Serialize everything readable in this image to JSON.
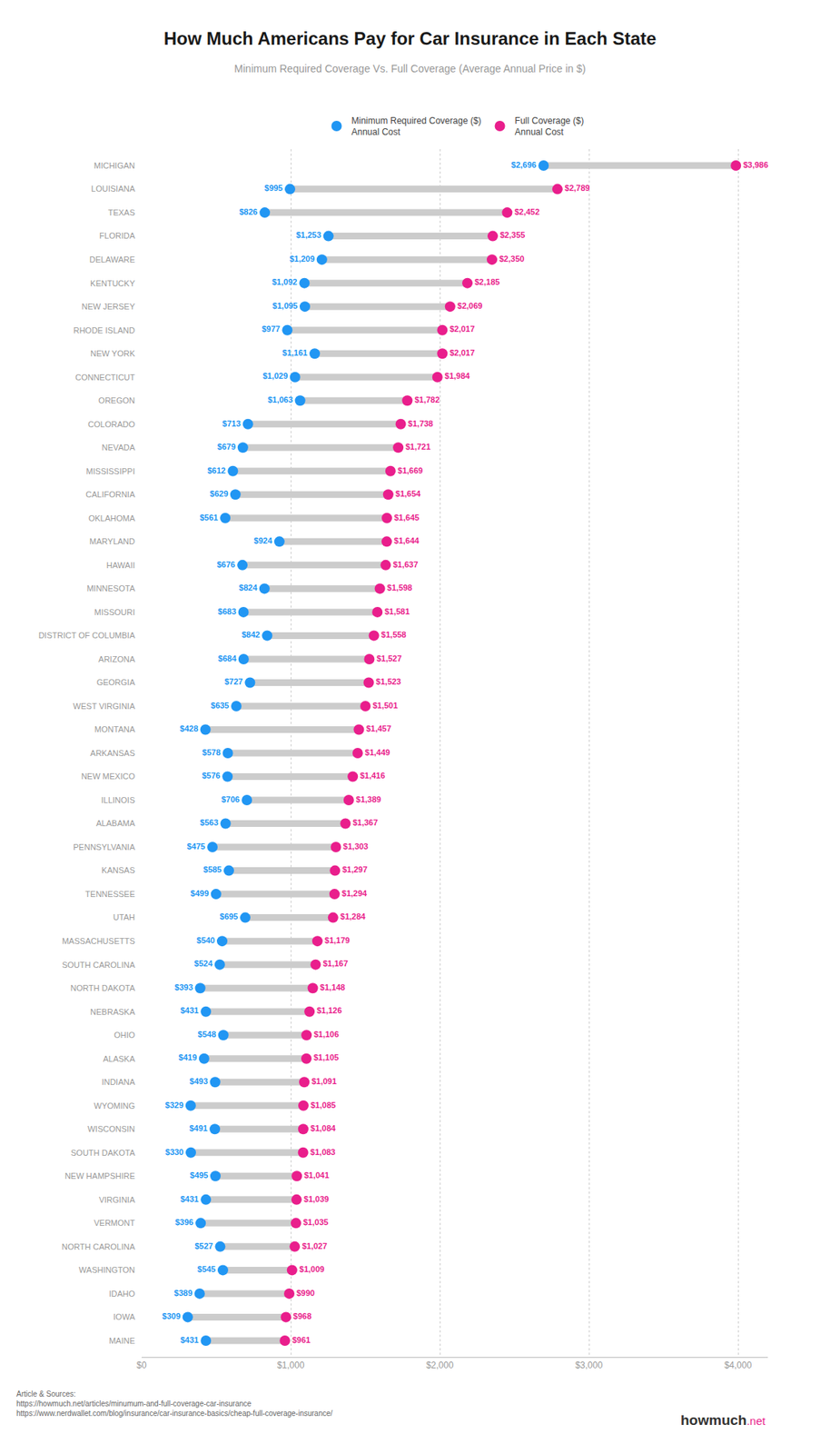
{
  "chart_data": {
    "type": "dumbbell",
    "title": "How Much Americans Pay for Car Insurance in Each State",
    "subtitle": "Minimum Required Coverage Vs. Full Coverage (Average Annual Price in $)",
    "orientation": "horizontal",
    "categories": [
      "MICHIGAN",
      "LOUISIANA",
      "TEXAS",
      "FLORIDA",
      "DELAWARE",
      "KENTUCKY",
      "NEW JERSEY",
      "RHODE ISLAND",
      "NEW YORK",
      "CONNECTICUT",
      "OREGON",
      "COLORADO",
      "NEVADA",
      "MISSISSIPPI",
      "CALIFORNIA",
      "OKLAHOMA",
      "MARYLAND",
      "HAWAII",
      "MINNESOTA",
      "MISSOURI",
      "DISTRICT OF COLUMBIA",
      "ARIZONA",
      "GEORGIA",
      "WEST VIRGINIA",
      "MONTANA",
      "ARKANSAS",
      "NEW MEXICO",
      "ILLINOIS",
      "ALABAMA",
      "PENNSYLVANIA",
      "KANSAS",
      "TENNESSEE",
      "UTAH",
      "MASSACHUSETTS",
      "SOUTH CAROLINA",
      "NORTH DAKOTA",
      "NEBRASKA",
      "OHIO",
      "ALASKA",
      "INDIANA",
      "WYOMING",
      "WISCONSIN",
      "SOUTH DAKOTA",
      "NEW HAMPSHIRE",
      "VIRGINIA",
      "VERMONT",
      "NORTH CAROLINA",
      "WASHINGTON",
      "IDAHO",
      "IOWA",
      "MAINE"
    ],
    "series": [
      {
        "name": "Minimum Required Coverage ($)\nAnnual Cost",
        "color": "#2196F3",
        "values": [
          2696,
          995,
          826,
          1253,
          1209,
          1092,
          1095,
          977,
          1161,
          1029,
          1063,
          713,
          679,
          612,
          629,
          561,
          924,
          676,
          824,
          683,
          842,
          684,
          727,
          635,
          428,
          578,
          576,
          706,
          563,
          475,
          585,
          499,
          695,
          540,
          524,
          393,
          431,
          548,
          419,
          493,
          329,
          491,
          330,
          495,
          431,
          396,
          527,
          545,
          389,
          309,
          431
        ],
        "value_labels": [
          "$2,696",
          "$995",
          "$826",
          "$1,253",
          "$1,209",
          "$1,092",
          "$1,095",
          "$977",
          "$1,161",
          "$1,029",
          "$1,063",
          "$713",
          "$679",
          "$612",
          "$629",
          "$561",
          "$924",
          "$676",
          "$824",
          "$683",
          "$842",
          "$684",
          "$727",
          "$635",
          "$428",
          "$578",
          "$576",
          "$706",
          "$563",
          "$475",
          "$585",
          "$499",
          "$695",
          "$540",
          "$524",
          "$393",
          "$431",
          "$548",
          "$419",
          "$493",
          "$329",
          "$491",
          "$330",
          "$495",
          "$431",
          "$396",
          "$527",
          "$545",
          "$389",
          "$309",
          "$431"
        ]
      },
      {
        "name": "Full Coverage ($)\nAnnual Cost",
        "color": "#E91E8C",
        "values": [
          3986,
          2789,
          2452,
          2355,
          2350,
          2185,
          2069,
          2017,
          2017,
          1984,
          1782,
          1738,
          1721,
          1669,
          1654,
          1645,
          1644,
          1637,
          1598,
          1581,
          1558,
          1527,
          1523,
          1501,
          1457,
          1449,
          1416,
          1389,
          1367,
          1303,
          1297,
          1294,
          1284,
          1179,
          1167,
          1148,
          1126,
          1106,
          1105,
          1091,
          1085,
          1084,
          1083,
          1041,
          1039,
          1035,
          1027,
          1009,
          990,
          968,
          961
        ],
        "value_labels": [
          "$3,986",
          "$2,789",
          "$2,452",
          "$2,355",
          "$2,350",
          "$2,185",
          "$2,069",
          "$2,017",
          "$2,017",
          "$1,984",
          "$1,782",
          "$1,738",
          "$1,721",
          "$1,669",
          "$1,654",
          "$1,645",
          "$1,644",
          "$1,637",
          "$1,598",
          "$1,581",
          "$1,558",
          "$1,527",
          "$1,523",
          "$1,501",
          "$1,457",
          "$1,449",
          "$1,416",
          "$1,389",
          "$1,367",
          "$1,303",
          "$1,297",
          "$1,294",
          "$1,284",
          "$1,179",
          "$1,167",
          "$1,148",
          "$1,126",
          "$1,106",
          "$1,105",
          "$1,091",
          "$1,085",
          "$1,084",
          "$1,083",
          "$1,041",
          "$1,039",
          "$1,035",
          "$1,027",
          "$1,009",
          "$990",
          "$968",
          "$961"
        ]
      }
    ],
    "color": "#cccccc",
    "xlim": [
      0,
      4200
    ],
    "xticks": [
      {
        "value": 0,
        "label": "$0"
      },
      {
        "value": 1000,
        "label": "$1,000"
      },
      {
        "value": 2000,
        "label": "$2,000"
      },
      {
        "value": 3000,
        "label": "$3,000"
      },
      {
        "value": 4000,
        "label": "$4,000"
      }
    ],
    "grid": true,
    "data_labels": true,
    "legend": "top",
    "annotations": [
      "Article & Sources:\nhttps://howmuch.net/articles/minumum-and-full-coverage-car-insurance\nhttps://www.nerdwallet.com/blog/insurance/car-insurance-basics/cheap-full-coverage-insurance/",
      "howmuch",
      ".net"
    ]
  }
}
